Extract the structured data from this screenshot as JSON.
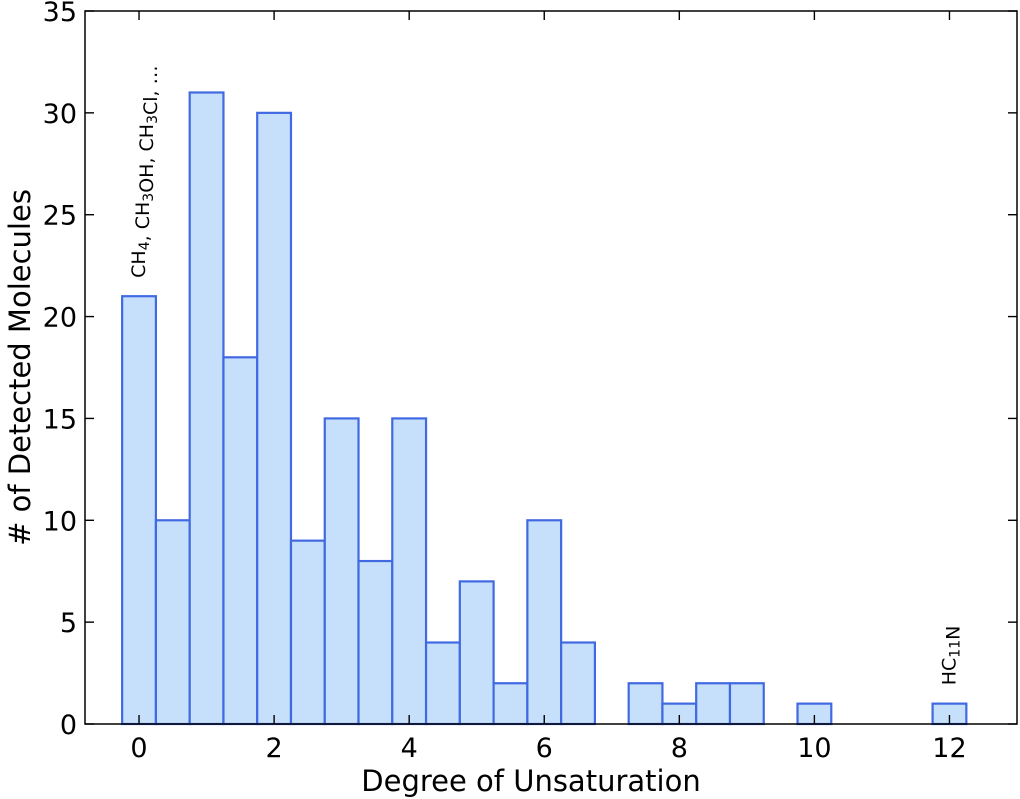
{
  "chart_data": {
    "type": "bar",
    "xlabel": "Degree of Unsaturation",
    "ylabel": "# of Detected Molecules",
    "xlim": [
      -0.8,
      13
    ],
    "ylim": [
      0,
      35
    ],
    "bin_width": 0.5,
    "x_ticks": [
      0,
      2,
      4,
      6,
      8,
      10,
      12
    ],
    "y_ticks": [
      0,
      5,
      10,
      15,
      20,
      25,
      30,
      35
    ],
    "bars": [
      {
        "x": 0,
        "value": 21
      },
      {
        "x": 0.5,
        "value": 10
      },
      {
        "x": 1,
        "value": 31
      },
      {
        "x": 1.5,
        "value": 18
      },
      {
        "x": 2,
        "value": 30
      },
      {
        "x": 2.5,
        "value": 9
      },
      {
        "x": 3,
        "value": 15
      },
      {
        "x": 3.5,
        "value": 8
      },
      {
        "x": 4,
        "value": 15
      },
      {
        "x": 4.5,
        "value": 4
      },
      {
        "x": 5,
        "value": 7
      },
      {
        "x": 5.5,
        "value": 2
      },
      {
        "x": 6,
        "value": 10
      },
      {
        "x": 6.5,
        "value": 4
      },
      {
        "x": 7.5,
        "value": 2
      },
      {
        "x": 8,
        "value": 1
      },
      {
        "x": 8.5,
        "value": 2
      },
      {
        "x": 9,
        "value": 2
      },
      {
        "x": 10,
        "value": 1
      },
      {
        "x": 12,
        "value": 1
      }
    ],
    "bar_fill": "#c6e0fb",
    "bar_edge": "#4169e1",
    "grid": false,
    "annotations": [
      {
        "x": 0,
        "y": 22,
        "label": "CH4, CH3OH, CH3Cl, …",
        "parts": [
          {
            "t": "CH"
          },
          {
            "t": "4",
            "sub": true
          },
          {
            "t": ", CH"
          },
          {
            "t": "3",
            "sub": true
          },
          {
            "t": "OH, CH"
          },
          {
            "t": "3",
            "sub": true
          },
          {
            "t": "Cl, …"
          }
        ]
      },
      {
        "x": 12,
        "y": 2,
        "label": "HC11N",
        "parts": [
          {
            "t": "HC"
          },
          {
            "t": "11",
            "sub": true
          },
          {
            "t": "N"
          }
        ]
      }
    ]
  }
}
